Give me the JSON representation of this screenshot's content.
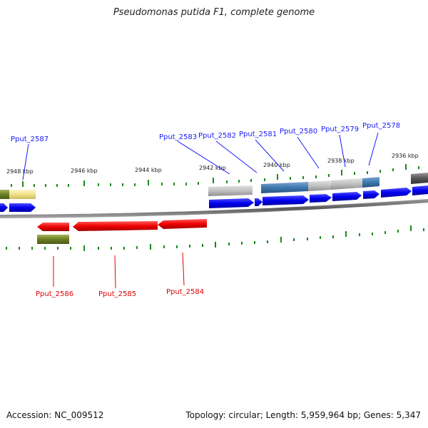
{
  "title": "Pseudomonas putida F1, complete genome",
  "accession": "Accession: NC_009512",
  "summary": "Topology: circular; Length: 5,959,964 bp; Genes: 5,347",
  "colors": {
    "label_forward": "#1a1aff",
    "label_reverse": "#e00000",
    "gene_forward": "#0000ee",
    "gene_reverse": "#ee0000",
    "tick": "#1a8a1a",
    "backbone": "#777777"
  },
  "tick_labels": [
    "2948 kbp",
    "2946 kbp",
    "2944 kbp",
    "2942 kbp",
    "2940 kbp",
    "2938 kbp",
    "2936 kbp"
  ],
  "gene_labels_top": [
    "Pput_2587",
    "Pput_2583",
    "Pput_2582",
    "Pput_2581",
    "Pput_2580",
    "Pput_2579",
    "Pput_2578"
  ],
  "gene_labels_bottom": [
    "Pput_2586",
    "Pput_2585",
    "Pput_2584"
  ]
}
